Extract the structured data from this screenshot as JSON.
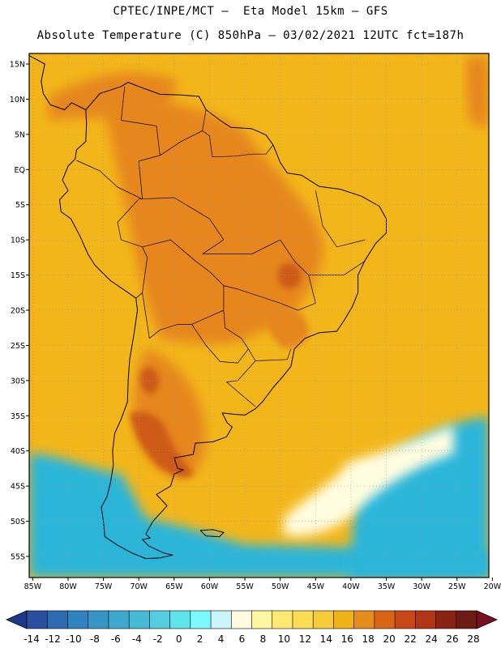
{
  "header": {
    "line1": "CPTEC/INPE/MCT –  Eta Model 15km – GFS",
    "line2": "Absolute Temperature (C) 850hPa – 03/02/2021 12UTC fct=187h"
  },
  "axes": {
    "lat_labels": [
      "15N",
      "10N",
      "5N",
      "EQ",
      "5S",
      "10S",
      "15S",
      "20S",
      "25S",
      "30S",
      "35S",
      "40S",
      "45S",
      "50S",
      "55S"
    ],
    "lon_labels": [
      "85W",
      "80W",
      "75W",
      "70W",
      "65W",
      "60W",
      "55W",
      "50W",
      "45W",
      "40W",
      "35W",
      "30W",
      "25W",
      "20W"
    ],
    "lat_range": [
      -58,
      16.5
    ],
    "lon_range": [
      -85.5,
      -20.5
    ]
  },
  "colors": {
    "cold_ocean": "#29b5d9",
    "mid": "#f3b61a",
    "warm": "#e6861c",
    "hot": "#cd5a16",
    "pale": "#fffde0",
    "coast": "#000000"
  },
  "colorbar": {
    "labels": [
      "-14",
      "-12",
      "-10",
      "-8",
      "-6",
      "-4",
      "-2",
      "0",
      "2",
      "4",
      "6",
      "8",
      "10",
      "12",
      "14",
      "16",
      "18",
      "20",
      "22",
      "24",
      "26",
      "28"
    ],
    "colors": [
      "#2a4f9e",
      "#2e6bb0",
      "#2f83be",
      "#3896c7",
      "#3fa8cf",
      "#47bbd6",
      "#55cde0",
      "#5fe4ec",
      "#7cf9fd",
      "#c9f5fb",
      "#fffbe3",
      "#fff6a0",
      "#feea73",
      "#fbdc52",
      "#f6cb37",
      "#efb317",
      "#e58d1a",
      "#d96617",
      "#c84915",
      "#b23514",
      "#8a2412",
      "#6d1c13"
    ],
    "under_color": "#1d3a8a",
    "over_color": "#7a0f20"
  }
}
